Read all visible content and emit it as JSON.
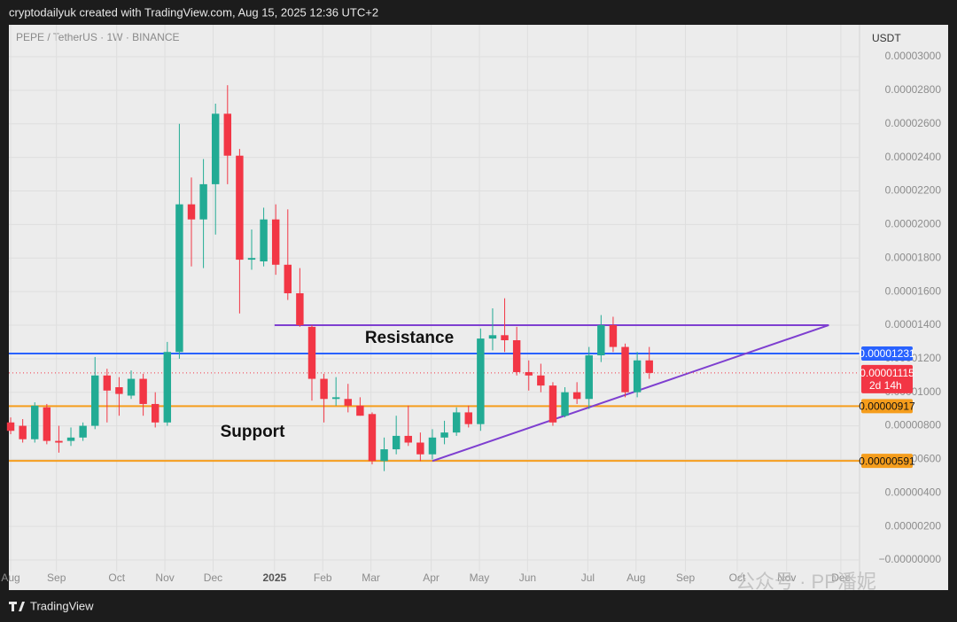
{
  "header": {
    "credit": "cryptodailyuk created with TradingView.com, Aug 15, 2025 12:36 UTC+2",
    "brand": "TradingView"
  },
  "chart_data": {
    "type": "candlestick",
    "title": "PEPE / TetherUS · 1W · BINANCE",
    "currency": "USDT",
    "watermark": "公众号 · PP潘妮",
    "x": [
      0,
      1,
      2,
      3,
      4,
      5,
      6,
      7,
      8,
      9,
      10,
      11,
      12,
      13,
      14,
      15,
      16,
      17,
      18,
      19,
      20,
      21,
      22,
      23,
      24,
      25,
      26,
      27,
      28,
      29,
      30,
      31,
      32,
      33,
      34,
      35,
      36,
      37,
      38,
      39,
      40,
      41,
      42,
      43,
      44,
      45,
      46,
      47,
      48,
      49,
      50,
      51,
      52,
      53
    ],
    "open": [
      8.2e-06,
      8e-06,
      7.2e-06,
      9.1e-06,
      7.1e-06,
      7.1e-06,
      7.3e-06,
      8e-06,
      1.1e-05,
      1.03e-05,
      9.8e-06,
      1.08e-05,
      9.3e-06,
      8.2e-06,
      1.24e-05,
      2.12e-05,
      2.03e-05,
      2.24e-05,
      2.66e-05,
      2.41e-05,
      1.79e-05,
      1.78e-05,
      2.03e-05,
      1.76e-05,
      1.59e-05,
      1.39e-05,
      1.08e-05,
      9.6e-06,
      9.6e-06,
      9.2e-06,
      8.7e-06,
      5.9e-06,
      6.6e-06,
      7.4e-06,
      7e-06,
      6.3e-06,
      7.3e-06,
      7.6e-06,
      8.8e-06,
      8.1e-06,
      1.32e-05,
      1.34e-05,
      1.31e-05,
      1.12e-05,
      1.1e-05,
      1.04e-05,
      8.6e-06,
      1e-05,
      9.6e-06,
      1.22e-05,
      1.4e-05,
      1.27e-05,
      1e-05,
      1.19e-05
    ],
    "high": [
      8.5e-06,
      8.4e-06,
      9.4e-06,
      9.3e-06,
      8e-06,
      7.9e-06,
      8.2e-06,
      1.21e-05,
      1.14e-05,
      1.09e-05,
      1.13e-05,
      1.11e-05,
      1e-05,
      1.3e-05,
      2.6e-05,
      2.28e-05,
      2.39e-05,
      2.72e-05,
      2.83e-05,
      2.45e-05,
      1.97e-05,
      2.1e-05,
      2.12e-05,
      2.09e-05,
      1.74e-05,
      1.4e-05,
      1.11e-05,
      1.09e-05,
      1.05e-05,
      9.7e-06,
      8.8e-06,
      7.3e-06,
      8.6e-06,
      9.2e-06,
      7.6e-06,
      7.8e-06,
      8.3e-06,
      9.1e-06,
      9.2e-06,
      1.38e-05,
      1.5e-05,
      1.56e-05,
      1.39e-05,
      1.19e-05,
      1.17e-05,
      1.06e-05,
      1.03e-05,
      1.06e-05,
      1.27e-05,
      1.46e-05,
      1.45e-05,
      1.29e-05,
      1.24e-05,
      1.27e-05
    ],
    "low": [
      7.5e-06,
      7e-06,
      7e-06,
      6.9e-06,
      6.4e-06,
      6.8e-06,
      7.1e-06,
      7.8e-06,
      8.2e-06,
      8.6e-06,
      9.6e-06,
      8.6e-06,
      7.9e-06,
      8e-06,
      1.2e-05,
      1.75e-05,
      1.74e-05,
      1.94e-05,
      2.24e-05,
      1.47e-05,
      1.73e-05,
      1.75e-05,
      1.7e-05,
      1.55e-05,
      1.39e-05,
      9.5e-06,
      8.2e-06,
      9.2e-06,
      8.8e-06,
      8.6e-06,
      5.7e-06,
      5.3e-06,
      6.3e-06,
      6.8e-06,
      5.9e-06,
      6e-06,
      6.9e-06,
      7.4e-06,
      7.9e-06,
      7.7e-06,
      1.25e-05,
      1.24e-05,
      1.1e-05,
      1.01e-05,
      1e-05,
      8e-06,
      8.5e-06,
      9.3e-06,
      9e-06,
      1.18e-05,
      1.24e-05,
      9.7e-06,
      9.7e-06,
      1.08e-05
    ],
    "close": [
      7.7e-06,
      7.2e-06,
      9.2e-06,
      7.1e-06,
      7e-06,
      7.3e-06,
      8e-06,
      1.1e-05,
      1.01e-05,
      9.9e-06,
      1.08e-05,
      9.3e-06,
      8.2e-06,
      1.24e-05,
      2.12e-05,
      2.03e-05,
      2.24e-05,
      2.66e-05,
      2.41e-05,
      1.79e-05,
      1.8e-05,
      2.03e-05,
      1.76e-05,
      1.59e-05,
      1.4e-05,
      1.08e-05,
      9.6e-06,
      9.7e-06,
      9.2e-06,
      8.6e-06,
      5.9e-06,
      6.6e-06,
      7.4e-06,
      7e-06,
      6.3e-06,
      7.3e-06,
      7.6e-06,
      8.8e-06,
      8.1e-06,
      1.32e-05,
      1.34e-05,
      1.31e-05,
      1.12e-05,
      1.1e-05,
      1.04e-05,
      8.2e-06,
      1e-05,
      9.6e-06,
      1.22e-05,
      1.4e-05,
      1.27e-05,
      1e-05,
      1.19e-05,
      1.115e-05
    ],
    "up_color": "#22ab94",
    "down_color": "#f23645",
    "xlim": [
      -0.15,
      70.45
    ],
    "xticks": [
      {
        "value": 0,
        "label": "Aug"
      },
      {
        "value": 3.8,
        "label": "Sep"
      },
      {
        "value": 8.8,
        "label": "Oct"
      },
      {
        "value": 12.8,
        "label": "Nov"
      },
      {
        "value": 16.8,
        "label": "Dec"
      },
      {
        "value": 21.9,
        "label": "2025"
      },
      {
        "value": 25.9,
        "label": "Feb"
      },
      {
        "value": 29.9,
        "label": "Mar"
      },
      {
        "value": 34.9,
        "label": "Apr"
      },
      {
        "value": 38.9,
        "label": "May"
      },
      {
        "value": 42.9,
        "label": "Jun"
      },
      {
        "value": 47.9,
        "label": "Jul"
      },
      {
        "value": 51.9,
        "label": "Aug"
      },
      {
        "value": 56,
        "label": "Sep"
      },
      {
        "value": 60.3,
        "label": "Oct"
      },
      {
        "value": 64.4,
        "label": "Nov"
      },
      {
        "value": 68.9,
        "label": "Dec"
      }
    ],
    "ylim": [
      -1.74e-06,
      3.19e-05
    ],
    "yticks": [
      {
        "value": 0,
        "label": "−0.00000000"
      },
      {
        "value": 2e-06,
        "label": "0.00000200"
      },
      {
        "value": 4e-06,
        "label": "0.00000400"
      },
      {
        "value": 6e-06,
        "label": "0.00000600"
      },
      {
        "value": 8e-06,
        "label": "0.00000800"
      },
      {
        "value": 1e-05,
        "label": "0.00001000"
      },
      {
        "value": 1.2e-05,
        "label": "0.00001200"
      },
      {
        "value": 1.4e-05,
        "label": "0.00001400"
      },
      {
        "value": 1.6e-05,
        "label": "0.00001600"
      },
      {
        "value": 1.8e-05,
        "label": "0.00001800"
      },
      {
        "value": 2e-05,
        "label": "0.00002000"
      },
      {
        "value": 2.2e-05,
        "label": "0.00002200"
      },
      {
        "value": 2.4e-05,
        "label": "0.00002400"
      },
      {
        "value": 2.6e-05,
        "label": "0.00002600"
      },
      {
        "value": 2.8e-05,
        "label": "0.00002800"
      },
      {
        "value": 3e-05,
        "label": "0.00003000"
      }
    ],
    "grid": true,
    "levels": [
      {
        "value": 1.231e-05,
        "label": "0.00001231",
        "color": "#2962ff"
      },
      {
        "value": 9.17e-06,
        "label": "0.00000917",
        "color": "#f59d1c"
      },
      {
        "value": 5.91e-06,
        "label": "0.00000591",
        "color": "#f59d1c"
      }
    ],
    "last_price": {
      "value": 1.115e-05,
      "label": "0.00001115",
      "countdown": "2d 14h",
      "color": "#f23645"
    },
    "trend_lines": [
      {
        "name": "Resistance",
        "color": "#7e3fd0",
        "x": [
          21.9,
          67.9
        ],
        "y": [
          1.4e-05,
          1.4e-05
        ]
      },
      {
        "name": "Support",
        "color": "#7e3fd0",
        "x": [
          35.0,
          67.9
        ],
        "y": [
          5.9e-06,
          1.4e-05
        ]
      }
    ]
  }
}
